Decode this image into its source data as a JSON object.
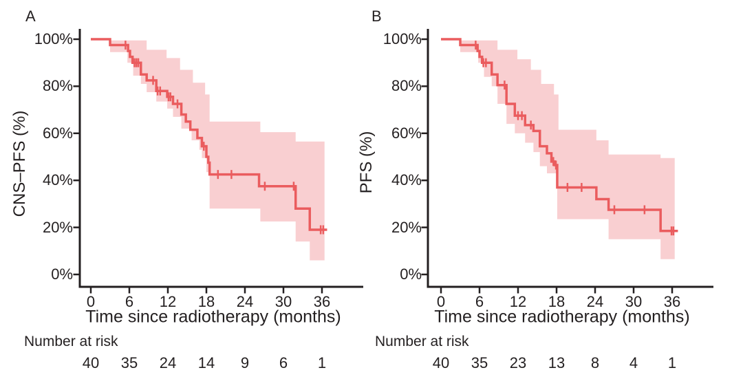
{
  "figure": {
    "background": "#ffffff",
    "text_color": "#231f20",
    "curve_color": "#ea5c5e",
    "band_color": "#f9cfd1",
    "axis_color": "#231f20"
  },
  "chart_data": [
    {
      "type": "line",
      "subtype": "kaplan-meier-step-with-confidence-band",
      "panel_label": "A",
      "ylabel": "CNS–PFS (%)",
      "xlabel": "Time since radiotherapy (months)",
      "xlim": [
        0,
        42
      ],
      "ylim": [
        0,
        100
      ],
      "x_ticks": [
        0,
        6,
        12,
        18,
        24,
        30,
        36
      ],
      "y_ticks": [
        {
          "value": 0,
          "label": "0%"
        },
        {
          "value": 20,
          "label": "20%"
        },
        {
          "value": 40,
          "label": "40%"
        },
        {
          "value": 60,
          "label": "60%"
        },
        {
          "value": 80,
          "label": "80%"
        },
        {
          "value": 100,
          "label": "100%"
        }
      ],
      "series": [
        {
          "name": "CNS-PFS Kaplan-Meier estimate",
          "start": [
            0,
            100
          ],
          "steps": [
            [
              3.0,
              97.5
            ],
            [
              5.8,
              95
            ],
            [
              6.1,
              92.5
            ],
            [
              6.5,
              90
            ],
            [
              7.8,
              85
            ],
            [
              8.7,
              82.5
            ],
            [
              10.2,
              78
            ],
            [
              11.9,
              75.5
            ],
            [
              12.8,
              72.5
            ],
            [
              14.1,
              68
            ],
            [
              14.8,
              65
            ],
            [
              15.5,
              61.5
            ],
            [
              16.6,
              58
            ],
            [
              17.3,
              54.5
            ],
            [
              18.0,
              50
            ],
            [
              18.3,
              47.5
            ],
            [
              18.5,
              42.5
            ],
            [
              26.2,
              37.5
            ],
            [
              31.9,
              28
            ],
            [
              34.1,
              19
            ]
          ],
          "end_time": 36.8
        }
      ],
      "censor_marks": [
        [
          5.4,
          97.5
        ],
        [
          6.8,
          90
        ],
        [
          7.1,
          90
        ],
        [
          7.4,
          90
        ],
        [
          9.7,
          82.5
        ],
        [
          10.4,
          78
        ],
        [
          10.8,
          78
        ],
        [
          12.1,
          75.5
        ],
        [
          12.4,
          75.5
        ],
        [
          13.5,
          72.5
        ],
        [
          17.6,
          54.5
        ],
        [
          19.8,
          42.5
        ],
        [
          21.9,
          42.5
        ],
        [
          27.1,
          37.5
        ],
        [
          31.6,
          37.5
        ],
        [
          35.8,
          19
        ],
        [
          36.2,
          19
        ]
      ],
      "confidence_band": {
        "start_time": 3,
        "end_time": 36.4,
        "upper": [
          [
            3,
            99.5
          ],
          [
            8.7,
            95.5
          ],
          [
            11.8,
            92
          ],
          [
            13.9,
            87
          ],
          [
            15.9,
            81.5
          ],
          [
            17.8,
            76.5
          ],
          [
            18.5,
            65
          ],
          [
            26.4,
            60.5
          ],
          [
            31.9,
            56.5
          ]
        ],
        "lower": [
          [
            3,
            94.5
          ],
          [
            5.7,
            90
          ],
          [
            6.6,
            84.5
          ],
          [
            7.8,
            81
          ],
          [
            8.7,
            77.5
          ],
          [
            10.2,
            73.5
          ],
          [
            11.9,
            70.5
          ],
          [
            12.8,
            67
          ],
          [
            14.1,
            62
          ],
          [
            15.7,
            57
          ],
          [
            16.9,
            53
          ],
          [
            17.3,
            49.5
          ],
          [
            18.0,
            43.5
          ],
          [
            18.5,
            28
          ],
          [
            26.4,
            22.5
          ],
          [
            31.9,
            14
          ],
          [
            34.1,
            6
          ]
        ]
      },
      "risk_table": {
        "label": "Number at risk",
        "times": [
          0,
          6,
          12,
          18,
          24,
          30,
          36
        ],
        "counts": [
          40,
          35,
          24,
          14,
          9,
          6,
          1
        ]
      }
    },
    {
      "type": "line",
      "subtype": "kaplan-meier-step-with-confidence-band",
      "panel_label": "B",
      "ylabel": "PFS (%)",
      "xlabel": "Time since radiotherapy (months)",
      "xlim": [
        0,
        42
      ],
      "ylim": [
        0,
        100
      ],
      "x_ticks": [
        0,
        6,
        12,
        18,
        24,
        30,
        36
      ],
      "y_ticks": [
        {
          "value": 0,
          "label": "0%"
        },
        {
          "value": 20,
          "label": "20%"
        },
        {
          "value": 40,
          "label": "40%"
        },
        {
          "value": 60,
          "label": "60%"
        },
        {
          "value": 80,
          "label": "80%"
        },
        {
          "value": 100,
          "label": "100%"
        }
      ],
      "series": [
        {
          "name": "PFS Kaplan-Meier estimate",
          "start": [
            0,
            100
          ],
          "steps": [
            [
              3.0,
              97.5
            ],
            [
              5.7,
              95
            ],
            [
              6.0,
              92.5
            ],
            [
              6.4,
              90
            ],
            [
              7.9,
              85
            ],
            [
              8.8,
              80.5
            ],
            [
              10.2,
              72.5
            ],
            [
              11.5,
              67.5
            ],
            [
              13.1,
              63.5
            ],
            [
              14.4,
              61
            ],
            [
              15.4,
              54.5
            ],
            [
              16.5,
              51.5
            ],
            [
              17.2,
              48
            ],
            [
              17.7,
              46.5
            ],
            [
              18.1,
              37
            ],
            [
              24.2,
              32
            ],
            [
              26.1,
              27.5
            ],
            [
              34.2,
              18.5
            ]
          ],
          "end_time": 36.9
        }
      ],
      "censor_marks": [
        [
          5.4,
          97.5
        ],
        [
          6.6,
          90
        ],
        [
          7.0,
          90
        ],
        [
          9.9,
          80.5
        ],
        [
          12.0,
          67.5
        ],
        [
          12.6,
          67.5
        ],
        [
          14.0,
          63.5
        ],
        [
          17.5,
          48
        ],
        [
          17.9,
          46.5
        ],
        [
          19.7,
          37
        ],
        [
          21.9,
          37
        ],
        [
          27.0,
          27.5
        ],
        [
          31.7,
          27.5
        ],
        [
          35.9,
          18.5
        ],
        [
          36.2,
          18.5
        ]
      ],
      "confidence_band": {
        "start_time": 3,
        "end_time": 36.4,
        "upper": [
          [
            3,
            99.5
          ],
          [
            8.8,
            95.5
          ],
          [
            11.9,
            91.5
          ],
          [
            14.0,
            87
          ],
          [
            15.6,
            81
          ],
          [
            17.6,
            76.5
          ],
          [
            18.3,
            61.5
          ],
          [
            24.2,
            57
          ],
          [
            26.1,
            51
          ],
          [
            34.2,
            49.5
          ]
        ],
        "lower": [
          [
            3,
            94.5
          ],
          [
            5.8,
            90
          ],
          [
            6.7,
            84
          ],
          [
            7.9,
            80
          ],
          [
            8.8,
            72.5
          ],
          [
            10.2,
            64
          ],
          [
            11.5,
            60
          ],
          [
            13.1,
            56
          ],
          [
            14.4,
            52
          ],
          [
            15.4,
            46
          ],
          [
            16.5,
            43
          ],
          [
            18.1,
            23.5
          ],
          [
            26.1,
            15
          ],
          [
            34.2,
            6.5
          ]
        ]
      },
      "risk_table": {
        "label": "Number at risk",
        "times": [
          0,
          6,
          12,
          18,
          24,
          30,
          36
        ],
        "counts": [
          40,
          35,
          23,
          13,
          8,
          4,
          1
        ]
      }
    }
  ]
}
